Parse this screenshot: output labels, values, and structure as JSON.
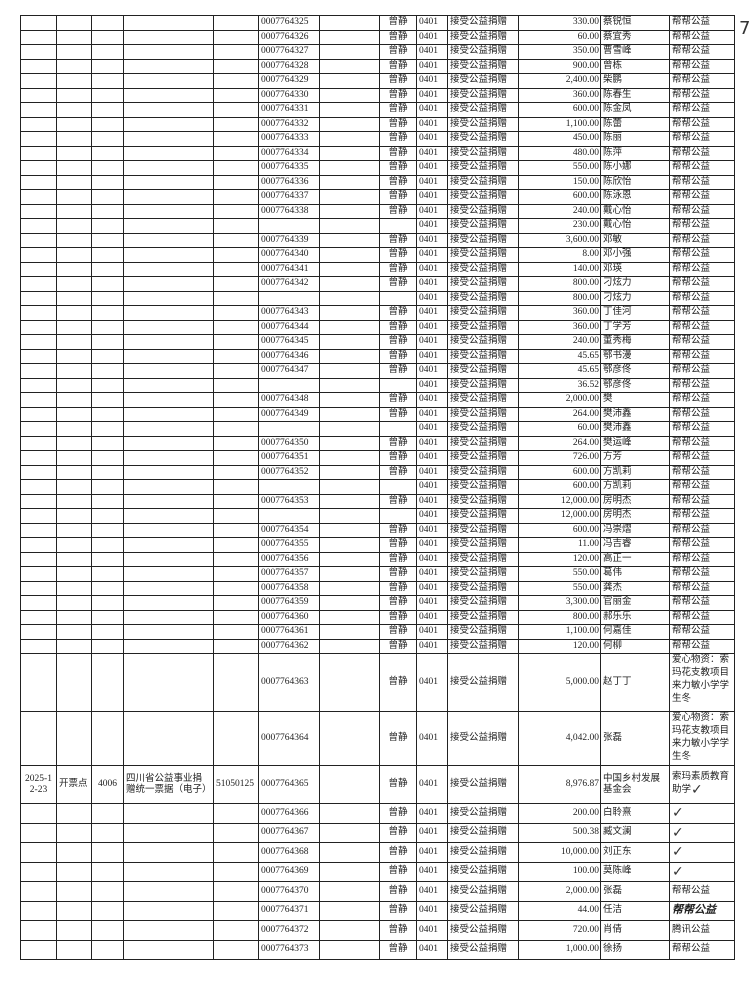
{
  "page_number": "7",
  "defaults": {
    "handler": "曾静",
    "account": "0401",
    "summary": "接受公益捐赠"
  },
  "rows": [
    {
      "receipt": "0007764325",
      "amount": "330.00",
      "donor": "蔡锐恒",
      "remark": "帮帮公益"
    },
    {
      "receipt": "0007764326",
      "amount": "60.00",
      "donor": "蔡宜秀",
      "remark": "帮帮公益"
    },
    {
      "receipt": "0007764327",
      "amount": "350.00",
      "donor": "曹雪峰",
      "remark": "帮帮公益"
    },
    {
      "receipt": "0007764328",
      "amount": "900.00",
      "donor": "曾栋",
      "remark": "帮帮公益"
    },
    {
      "receipt": "0007764329",
      "amount": "2,400.00",
      "donor": "柴鹏",
      "remark": "帮帮公益"
    },
    {
      "receipt": "0007764330",
      "amount": "360.00",
      "donor": "陈春生",
      "remark": "帮帮公益"
    },
    {
      "receipt": "0007764331",
      "amount": "600.00",
      "donor": "陈金凤",
      "remark": "帮帮公益"
    },
    {
      "receipt": "0007764332",
      "amount": "1,100.00",
      "donor": "陈蕾",
      "remark": "帮帮公益"
    },
    {
      "receipt": "0007764333",
      "amount": "450.00",
      "donor": "陈丽",
      "remark": "帮帮公益"
    },
    {
      "receipt": "0007764334",
      "amount": "480.00",
      "donor": "陈萍",
      "remark": "帮帮公益"
    },
    {
      "receipt": "0007764335",
      "amount": "550.00",
      "donor": "陈小娜",
      "remark": "帮帮公益"
    },
    {
      "receipt": "0007764336",
      "amount": "150.00",
      "donor": "陈欣怡",
      "remark": "帮帮公益"
    },
    {
      "receipt": "0007764337",
      "amount": "600.00",
      "donor": "陈泳恩",
      "remark": "帮帮公益"
    },
    {
      "receipt": "0007764338",
      "amount": "240.00",
      "donor": "戴心怡",
      "remark": "帮帮公益"
    },
    {
      "receipt": "",
      "no_handler": true,
      "amount": "230.00",
      "donor": "戴心怡",
      "remark": "帮帮公益"
    },
    {
      "receipt": "0007764339",
      "amount": "3,600.00",
      "donor": "邓敏",
      "remark": "帮帮公益"
    },
    {
      "receipt": "0007764340",
      "amount": "8.00",
      "donor": "邓小强",
      "remark": "帮帮公益"
    },
    {
      "receipt": "0007764341",
      "amount": "140.00",
      "donor": "邓瑛",
      "remark": "帮帮公益"
    },
    {
      "receipt": "0007764342",
      "amount": "800.00",
      "donor": "刁炫力",
      "remark": "帮帮公益"
    },
    {
      "receipt": "",
      "no_handler": true,
      "amount": "800.00",
      "donor": "刁炫力",
      "remark": "帮帮公益"
    },
    {
      "receipt": "0007764343",
      "amount": "360.00",
      "donor": "丁佳河",
      "remark": "帮帮公益"
    },
    {
      "receipt": "0007764344",
      "amount": "360.00",
      "donor": "丁学芳",
      "remark": "帮帮公益"
    },
    {
      "receipt": "0007764345",
      "amount": "240.00",
      "donor": "董秀梅",
      "remark": "帮帮公益"
    },
    {
      "receipt": "0007764346",
      "amount": "45.65",
      "donor": "鄂书漫",
      "remark": "帮帮公益"
    },
    {
      "receipt": "0007764347",
      "amount": "45.65",
      "donor": "鄂彦佟",
      "remark": "帮帮公益"
    },
    {
      "receipt": "",
      "no_handler": true,
      "amount": "36.52",
      "donor": "鄂彦佟",
      "remark": "帮帮公益"
    },
    {
      "receipt": "0007764348",
      "amount": "2,000.00",
      "donor": "樊",
      "remark": "帮帮公益"
    },
    {
      "receipt": "0007764349",
      "amount": "264.00",
      "donor": "樊沛鑫",
      "remark": "帮帮公益"
    },
    {
      "receipt": "",
      "no_handler": true,
      "amount": "60.00",
      "donor": "樊沛鑫",
      "remark": "帮帮公益"
    },
    {
      "receipt": "0007764350",
      "amount": "264.00",
      "donor": "樊运峰",
      "remark": "帮帮公益"
    },
    {
      "receipt": "0007764351",
      "amount": "726.00",
      "donor": "方芳",
      "remark": "帮帮公益"
    },
    {
      "receipt": "0007764352",
      "amount": "600.00",
      "donor": "方凯莉",
      "remark": "帮帮公益"
    },
    {
      "receipt": "",
      "no_handler": true,
      "amount": "600.00",
      "donor": "方凯莉",
      "remark": "帮帮公益"
    },
    {
      "receipt": "0007764353",
      "amount": "12,000.00",
      "donor": "房明杰",
      "remark": "帮帮公益"
    },
    {
      "receipt": "",
      "no_handler": true,
      "amount": "12,000.00",
      "donor": "房明杰",
      "remark": "帮帮公益"
    },
    {
      "receipt": "0007764354",
      "amount": "600.00",
      "donor": "冯崇熠",
      "remark": "帮帮公益"
    },
    {
      "receipt": "0007764355",
      "amount": "11.00",
      "donor": "冯吉睿",
      "remark": "帮帮公益"
    },
    {
      "receipt": "0007764356",
      "amount": "120.00",
      "donor": "高正一",
      "remark": "帮帮公益"
    },
    {
      "receipt": "0007764357",
      "amount": "550.00",
      "donor": "葛伟",
      "remark": "帮帮公益"
    },
    {
      "receipt": "0007764358",
      "amount": "550.00",
      "donor": "龚杰",
      "remark": "帮帮公益"
    },
    {
      "receipt": "0007764359",
      "amount": "3,300.00",
      "donor": "官丽金",
      "remark": "帮帮公益"
    },
    {
      "receipt": "0007764360",
      "amount": "800.00",
      "donor": "郝乐乐",
      "remark": "帮帮公益"
    },
    {
      "receipt": "0007764361",
      "amount": "1,100.00",
      "donor": "何嘉佳",
      "remark": "帮帮公益"
    },
    {
      "receipt": "0007764362",
      "amount": "120.00",
      "donor": "何柳",
      "remark": "帮帮公益"
    },
    {
      "receipt": "0007764363",
      "amount": "5,000.00",
      "donor": "赵丁丁",
      "remark": "爱心物资：索玛花支教项目来力敏小学学生冬"
    },
    {
      "receipt": "0007764364",
      "amount": "4,042.00",
      "donor": "张磊",
      "remark": "爱心物资：索玛花支教项目来力敏小学学生冬"
    },
    {
      "date": "2025-12-23",
      "type": "开票点",
      "code": "4006",
      "bill_name": "四川省公益事业捐赠统一票据（电子）",
      "bill_code": "51050125",
      "receipt": "0007764365",
      "amount": "8,976.87",
      "donor": "中国乡村发展基金会",
      "remark": "索玛素质教育助学",
      "check": "✓"
    },
    {
      "receipt": "0007764366",
      "amount": "200.00",
      "donor": "白聆熹",
      "remark": "",
      "check": "✓"
    },
    {
      "receipt": "0007764367",
      "amount": "500.38",
      "donor": "臧文澜",
      "remark": "",
      "check": "✓"
    },
    {
      "receipt": "0007764368",
      "amount": "10,000.00",
      "donor": "刘正东",
      "remark": "",
      "check": "✓"
    },
    {
      "receipt": "0007764369",
      "amount": "100.00",
      "donor": "莫陈峰",
      "remark": "",
      "check": "✓"
    },
    {
      "receipt": "0007764370",
      "amount": "2,000.00",
      "donor": "张磊",
      "remark": "帮帮公益"
    },
    {
      "receipt": "0007764371",
      "amount": "44.00",
      "donor": "任洁",
      "remark": "帮帮公益",
      "handwritten": true
    },
    {
      "receipt": "0007764372",
      "amount": "720.00",
      "donor": "肖倩",
      "remark": "腾讯公益"
    },
    {
      "receipt": "0007764373",
      "amount": "1,000.00",
      "donor": "徐扬",
      "remark": "帮帮公益"
    }
  ]
}
